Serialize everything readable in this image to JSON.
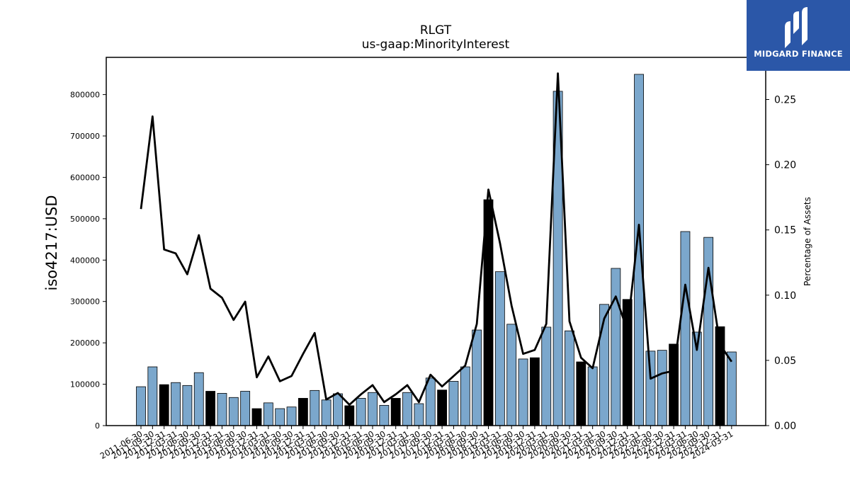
{
  "chart_data": {
    "type": "bar",
    "title": "RLGT",
    "subtitle": "us-gaap:MinorityInterest",
    "ylabel": "iso4217:USD",
    "y2label": "Percentage of Assets",
    "ylim": [
      0,
      890000
    ],
    "y2lim": [
      0,
      0.2823
    ],
    "yticks": [
      0,
      100000,
      200000,
      300000,
      400000,
      500000,
      600000,
      700000,
      800000
    ],
    "y2ticks": [
      "0.00",
      "0.05",
      "0.10",
      "0.15",
      "0.20",
      "0.25"
    ],
    "grid": false,
    "bar_colors": {
      "regular": "#7ba7cc",
      "highlight": "#000000"
    },
    "line_color": "#000000",
    "categories": [
      "2011-06-30",
      "2011-09-30",
      "2011-12-31",
      "2012-03-31",
      "2012-06-30",
      "2012-09-30",
      "2012-12-31",
      "2013-03-31",
      "2013-06-30",
      "2013-09-30",
      "2013-12-31",
      "2014-03-31",
      "2014-06-30",
      "2014-09-30",
      "2014-12-31",
      "2015-03-31",
      "2015-06-30",
      "2015-09-30",
      "2015-12-31",
      "2016-03-31",
      "2016-06-30",
      "2016-09-30",
      "2016-12-31",
      "2017-03-31",
      "2017-06-30",
      "2017-09-30",
      "2017-12-31",
      "2018-03-31",
      "2018-06-30",
      "2018-09-30",
      "2018-12-31",
      "2019-03-31",
      "2019-06-30",
      "2019-09-30",
      "2019-12-31",
      "2020-03-31",
      "2020-06-30",
      "2020-09-30",
      "2020-12-31",
      "2021-03-31",
      "2021-06-30",
      "2021-09-30",
      "2021-12-31",
      "2022-03-31",
      "2022-06-30",
      "2022-09-30",
      "2022-12-31",
      "2023-03-31",
      "2023-06-30",
      "2023-09-30",
      "2023-12-31",
      "2024-03-31"
    ],
    "values": [
      94000,
      142000,
      99000,
      104000,
      97000,
      128000,
      83000,
      78000,
      68000,
      83000,
      41000,
      55000,
      41000,
      45000,
      66000,
      85000,
      62000,
      77000,
      48000,
      66000,
      80000,
      49000,
      66000,
      80000,
      53000,
      115000,
      86000,
      107000,
      142000,
      231000,
      546000,
      372000,
      245000,
      161000,
      164000,
      238000,
      808000,
      229000,
      154000,
      142000,
      293000,
      380000,
      305000,
      849000,
      180000,
      182000,
      197000,
      469000,
      226000,
      455000,
      239000,
      178000
    ],
    "highlight": [
      false,
      false,
      true,
      false,
      false,
      false,
      true,
      false,
      false,
      false,
      true,
      false,
      false,
      false,
      true,
      false,
      false,
      false,
      true,
      false,
      false,
      false,
      true,
      false,
      false,
      false,
      true,
      false,
      false,
      false,
      true,
      false,
      false,
      false,
      true,
      false,
      false,
      false,
      true,
      false,
      false,
      false,
      true,
      false,
      false,
      false,
      true,
      false,
      false,
      false,
      true,
      false
    ],
    "pct_of_assets": [
      0.166,
      0.237,
      0.135,
      0.132,
      0.116,
      0.146,
      0.105,
      0.098,
      0.081,
      0.095,
      0.037,
      0.053,
      0.034,
      0.038,
      0.055,
      0.071,
      0.02,
      0.025,
      0.016,
      0.024,
      0.031,
      0.018,
      0.024,
      0.031,
      0.018,
      0.039,
      0.03,
      0.038,
      0.046,
      0.078,
      0.181,
      0.14,
      0.092,
      0.055,
      0.058,
      0.078,
      0.27,
      0.08,
      0.052,
      0.044,
      0.082,
      0.099,
      0.073,
      0.154,
      0.036,
      0.04,
      0.042,
      0.108,
      0.058,
      0.121,
      0.062,
      0.049
    ]
  },
  "logo": {
    "text": "MIDGARD FINANCE",
    "icon": "midgard-logo-icon",
    "background": "#2b57a8"
  }
}
